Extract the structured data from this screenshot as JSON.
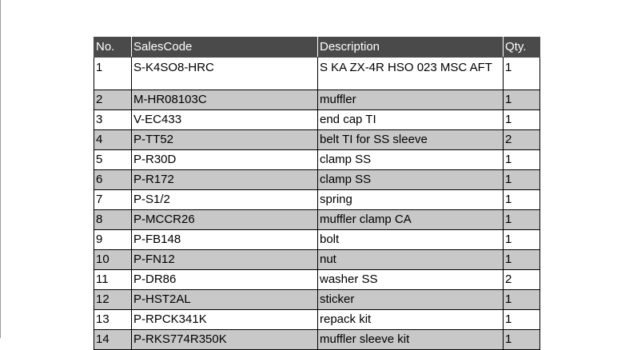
{
  "table": {
    "headers": [
      "No.",
      "SalesCode",
      "Description",
      "Qty."
    ],
    "rows": [
      {
        "no": "1",
        "code": "S-K4SO8-HRC",
        "desc": "S KA ZX-4R HSO 023 MSC AFT",
        "qty": "1"
      },
      {
        "no": "2",
        "code": "M-HR08103C",
        "desc": "muffler",
        "qty": "1"
      },
      {
        "no": "3",
        "code": "V-EC433",
        "desc": "end cap TI",
        "qty": "1"
      },
      {
        "no": "4",
        "code": "P-TT52",
        "desc": "belt TI for SS sleeve",
        "qty": "2"
      },
      {
        "no": "5",
        "code": "P-R30D",
        "desc": "clamp SS",
        "qty": "1"
      },
      {
        "no": "6",
        "code": "P-R172",
        "desc": "clamp SS",
        "qty": "1"
      },
      {
        "no": "7",
        "code": "P-S1/2",
        "desc": "spring",
        "qty": "1"
      },
      {
        "no": "8",
        "code": "P-MCCR26",
        "desc": "muffler clamp CA",
        "qty": "1"
      },
      {
        "no": "9",
        "code": "P-FB148",
        "desc": "bolt",
        "qty": "1"
      },
      {
        "no": "10",
        "code": "P-FN12",
        "desc": "nut",
        "qty": "1"
      },
      {
        "no": "11",
        "code": "P-DR86",
        "desc": "washer SS",
        "qty": "2"
      },
      {
        "no": "12",
        "code": "P-HST2AL",
        "desc": "sticker",
        "qty": "1"
      },
      {
        "no": "13",
        "code": "P-RPCK341K",
        "desc": "repack kit",
        "qty": "1"
      },
      {
        "no": "14",
        "code": "P-RKS774R350K",
        "desc": "muffler sleeve kit",
        "qty": "1"
      }
    ]
  },
  "colors": {
    "header_bg": "#4a4a4a",
    "alt_row_bg": "#c8c8c8"
  }
}
